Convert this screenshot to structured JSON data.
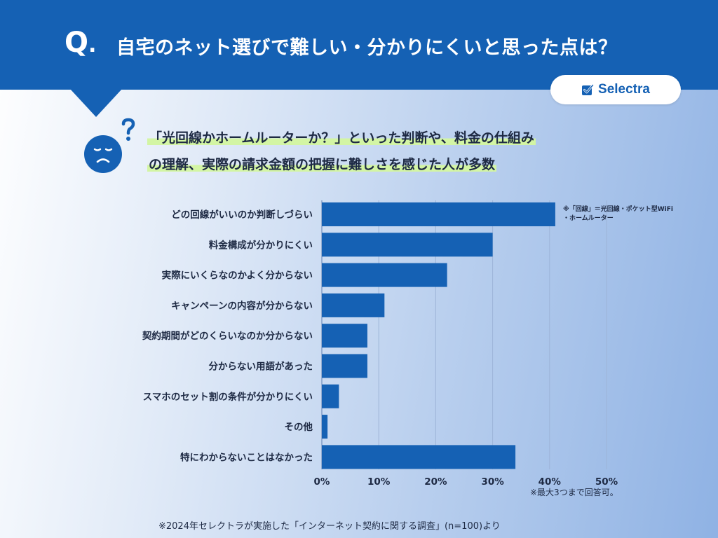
{
  "header": {
    "q_letter": "Q",
    "q_dot": ".",
    "question": "自宅のネット選びで難しい・分かりにくいと思った点は？",
    "brand_name": "Selectra",
    "background_color": "#1561b4"
  },
  "headline": {
    "line1": "「光回線かホームルーターか？」といった判断や、料金の仕組み",
    "line2": "の理解、実際の請求金額の把握に難しさを感じた人が多数",
    "highlight_color": "#d3f5a4",
    "icons": [
      "sad-face-icon",
      "question-mark-icon"
    ]
  },
  "chart_data": {
    "type": "bar",
    "orientation": "horizontal",
    "categories": [
      "どの回線がいいのか判断しづらい",
      "料金構成が分かりにくい",
      "実際にいくらなのかよく分からない",
      "キャンペーンの内容が分からない",
      "契約期間がどのくらいなのか分からない",
      "分からない用語があった",
      "スマホのセット割の条件が分かりにくい",
      "その他",
      "特にわからないことはなかった"
    ],
    "values": [
      41,
      30,
      22,
      11,
      8,
      8,
      3,
      1,
      34
    ],
    "xlim": [
      0,
      50
    ],
    "xticks": [
      "0%",
      "10%",
      "20%",
      "30%",
      "40%",
      "50%"
    ],
    "grid": true,
    "bar_color": "#1561b4",
    "annotation_line1": "※「回線」＝光回線・ポケット型WiFi",
    "annotation_line2": "・ホームルーター"
  },
  "notes": {
    "multiple_answers": "※最大3つまで回答可。",
    "source": "※2024年セレクトラが実施した「インターネット契約に関する調査」(n=100)より"
  }
}
